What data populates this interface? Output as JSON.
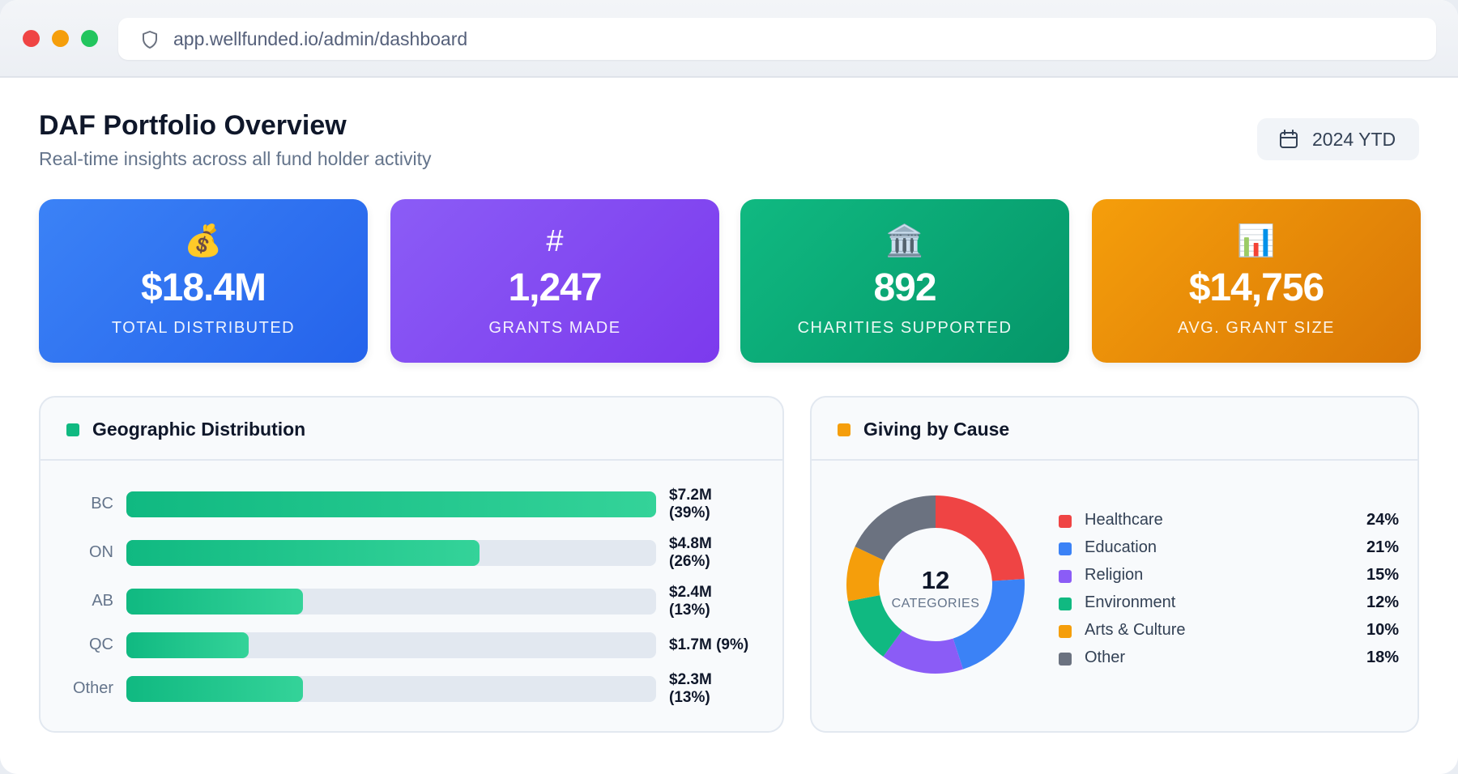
{
  "browser": {
    "url": "app.wellfunded.io/admin/dashboard"
  },
  "header": {
    "title": "DAF Portfolio Overview",
    "subtitle": "Real-time insights across all fund holder activity",
    "period_label": "2024 YTD"
  },
  "kpis": [
    {
      "icon": "money-bag-icon",
      "glyph": "💰",
      "value": "$18.4M",
      "label": "TOTAL DISTRIBUTED",
      "color": "#3b82f6"
    },
    {
      "icon": "hash-icon",
      "glyph": "#",
      "value": "1,247",
      "label": "GRANTS MADE",
      "color": "#8b5cf6"
    },
    {
      "icon": "bank-icon",
      "glyph": "🏛️",
      "value": "892",
      "label": "CHARITIES SUPPORTED",
      "color": "#10b981"
    },
    {
      "icon": "bar-chart-icon",
      "glyph": "📊",
      "value": "$14,756",
      "label": "AVG. GRANT SIZE",
      "color": "#f59e0b"
    }
  ],
  "geo_panel": {
    "title": "Geographic Distribution",
    "accent": "#10b981"
  },
  "cause_panel": {
    "title": "Giving by Cause",
    "accent": "#f59e0b",
    "center_value": "12",
    "center_label": "CATEGORIES"
  },
  "chart_data": [
    {
      "type": "bar",
      "orientation": "horizontal",
      "title": "Geographic Distribution",
      "categories": [
        "BC",
        "ON",
        "AB",
        "QC",
        "Other"
      ],
      "values": [
        39,
        26,
        13,
        9,
        13
      ],
      "unit": "%",
      "amounts_musd": [
        7.2,
        4.8,
        2.4,
        1.7,
        2.3
      ],
      "data_labels": [
        [
          "$7.2M",
          "(39%)"
        ],
        [
          "$4.8M",
          "(26%)"
        ],
        [
          "$2.4M",
          "(13%)"
        ],
        [
          "$1.7M (9%)"
        ],
        [
          "$2.3M",
          "(13%)"
        ]
      ],
      "xlim": [
        0,
        39
      ],
      "grid": false
    },
    {
      "type": "pie",
      "style": "donut",
      "title": "Giving by Cause",
      "categories": [
        "Healthcare",
        "Education",
        "Religion",
        "Environment",
        "Arts & Culture",
        "Other"
      ],
      "values": [
        24,
        21,
        15,
        12,
        10,
        18
      ],
      "labels": [
        "24%",
        "21%",
        "15%",
        "12%",
        "10%",
        "18%"
      ],
      "colors": [
        "#ef4444",
        "#3b82f6",
        "#8b5cf6",
        "#10b981",
        "#f59e0b",
        "#6b7280"
      ],
      "legend": "right"
    }
  ]
}
